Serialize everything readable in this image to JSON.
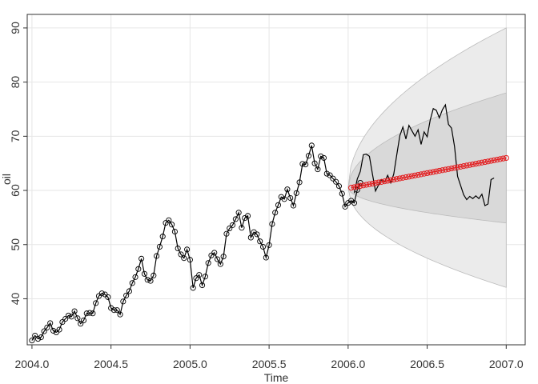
{
  "chart_data": {
    "type": "line",
    "title": "",
    "xlabel": "Time",
    "ylabel": "oil",
    "xlim": [
      2003.97,
      2007.12
    ],
    "ylim": [
      31.5,
      92.5
    ],
    "x_ticks": [
      2004.0,
      2004.5,
      2005.0,
      2005.5,
      2006.0,
      2006.5,
      2007.0
    ],
    "x_tick_labels": [
      "2004.0",
      "2004.5",
      "2005.0",
      "2005.5",
      "2006.0",
      "2006.5",
      "2007.0"
    ],
    "y_ticks": [
      40,
      50,
      60,
      70,
      80,
      90
    ],
    "y_tick_labels": [
      "40",
      "50",
      "60",
      "70",
      "80",
      "90"
    ],
    "grid": true,
    "colors": {
      "observed": "#000000",
      "forecast": "#e31a1c",
      "band_outer": "#ebebeb",
      "band_inner": "#d9d9d9",
      "grid": "#e6e6e6",
      "axis": "#333333"
    },
    "series": [
      {
        "role": "observed",
        "x_start": 2004.0,
        "step": 0.0192307692,
        "values": [
          32.3,
          33.2,
          32.6,
          32.9,
          34.0,
          34.7,
          35.5,
          34.1,
          33.8,
          34.3,
          35.7,
          36.3,
          36.9,
          36.7,
          37.7,
          36.4,
          35.4,
          36.0,
          37.3,
          37.4,
          37.3,
          39.2,
          40.5,
          41.0,
          40.8,
          40.3,
          38.3,
          37.9,
          37.9,
          37.1,
          39.5,
          40.6,
          41.4,
          42.9,
          44.0,
          45.5,
          47.4,
          44.6,
          43.5,
          43.3,
          44.3,
          47.9,
          49.6,
          51.5,
          54.0,
          54.5,
          53.7,
          52.4,
          49.3,
          48.2,
          47.5,
          49.1,
          47.2,
          42.0,
          43.8,
          44.4,
          42.5,
          44.1,
          46.6,
          48.0,
          48.5,
          47.3,
          46.4,
          47.8,
          52.0,
          53.0,
          53.6,
          54.7,
          55.9,
          53.1,
          54.9,
          55.3,
          51.3,
          52.3,
          51.9,
          50.6,
          49.6,
          47.6,
          49.9,
          53.8,
          55.9,
          57.3,
          58.8,
          58.4,
          60.2,
          58.6,
          57.2,
          59.5,
          61.5,
          64.9,
          64.8,
          66.4,
          68.3,
          65.0,
          63.9,
          66.3,
          66.0,
          63.1,
          62.8,
          62.2,
          61.6,
          60.8,
          59.4,
          57.0,
          57.7,
          58.1,
          57.7,
          60.1,
          61.4
        ]
      },
      {
        "role": "observed-continued",
        "x_start": 2006.0385,
        "step": 0.0192307692,
        "values": [
          59.5,
          62.1,
          63.5,
          66.6,
          66.7,
          66.3,
          63.0,
          59.9,
          61.0,
          62.0,
          61.6,
          62.8,
          61.4,
          63.0,
          66.6,
          70.1,
          71.7,
          69.5,
          72.0,
          71.0,
          70.0,
          71.2,
          68.5,
          70.8,
          69.9,
          73.0,
          75.1,
          74.8,
          73.4,
          74.9,
          75.8,
          72.2,
          71.5,
          68.1,
          62.6,
          60.9,
          59.2,
          58.3,
          58.9,
          58.5,
          59.0,
          58.5,
          59.3,
          57.2,
          57.5,
          62.0,
          62.3
        ]
      },
      {
        "role": "forecast",
        "x_start": 2006.0192,
        "x_end": 2007.0,
        "y_start": 60.5,
        "y_end": 66.0,
        "n": 52
      }
    ],
    "bands": [
      {
        "level": "outer",
        "start": [
          2006.0,
          60.5
        ],
        "upper_end": 90.0,
        "lower_end": 42.1
      },
      {
        "level": "inner",
        "start": [
          2006.0,
          60.5
        ],
        "upper_end": 78.0,
        "lower_end": 54.0
      }
    ]
  }
}
